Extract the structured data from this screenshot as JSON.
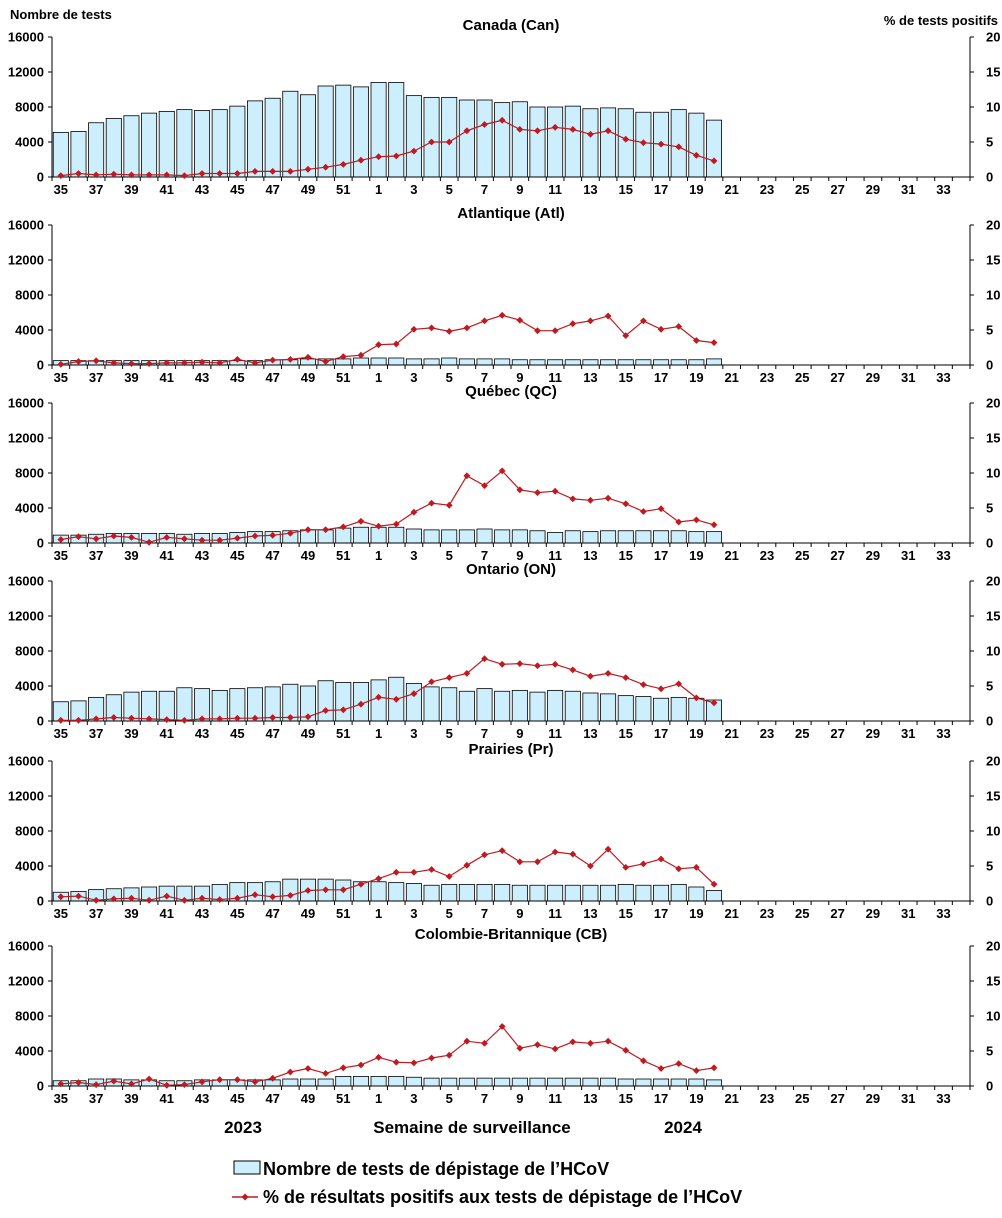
{
  "chart_data": {
    "type": "bar+line",
    "y_left_title": "Nombre de tests",
    "y_right_title": "% de tests positifs",
    "x_title": "Semaine de surveillance",
    "year_start_label": "2023",
    "year_end_label": "2024",
    "weeks": [
      35,
      36,
      37,
      38,
      39,
      40,
      41,
      42,
      43,
      44,
      45,
      46,
      47,
      48,
      49,
      50,
      51,
      52,
      1,
      2,
      3,
      4,
      5,
      6,
      7,
      8,
      9,
      10,
      11,
      12,
      13,
      14,
      15,
      16,
      17,
      18,
      19,
      20,
      21,
      22,
      23,
      24,
      25,
      26,
      27,
      28,
      29,
      30,
      31,
      32,
      33,
      34
    ],
    "tick_labels": [
      "35",
      "37",
      "39",
      "41",
      "43",
      "45",
      "47",
      "49",
      "51",
      "1",
      "3",
      "5",
      "7",
      "9",
      "11",
      "13",
      "15",
      "17",
      "19",
      "21",
      "23",
      "25",
      "27",
      "29",
      "31",
      "33"
    ],
    "y_left_ticks": [
      "0",
      "4000",
      "8000",
      "12000",
      "16000"
    ],
    "y_right_ticks": [
      "0",
      "5",
      "10",
      "15",
      "20"
    ],
    "ylim_left": [
      0,
      16000
    ],
    "ylim_right": [
      0,
      20
    ],
    "colors": {
      "bar_fill": "#cdeefc",
      "bar_stroke": "#000000",
      "line": "#c0191f"
    },
    "legend": {
      "bars": "Nombre de tests de dépistage de l’HCoV",
      "line": "% de résultats positifs aux tests de dépistage de l’HCoV"
    },
    "panels": [
      {
        "title": "Canada (Can)",
        "tests": [
          5100,
          5200,
          6200,
          6700,
          7000,
          7300,
          7500,
          7700,
          7600,
          7700,
          8100,
          8700,
          9000,
          9800,
          9400,
          10400,
          10500,
          10300,
          10800,
          10800,
          9300,
          9100,
          9100,
          8800,
          8800,
          8500,
          8600,
          8000,
          8000,
          8100,
          7800,
          7900,
          7800,
          7400,
          7400,
          7700,
          7300,
          6500
        ],
        "percent": [
          0.2,
          0.5,
          0.3,
          0.4,
          0.3,
          0.3,
          0.3,
          0.2,
          0.5,
          0.5,
          0.5,
          0.8,
          0.8,
          0.8,
          1.1,
          1.4,
          1.8,
          2.4,
          2.9,
          3.0,
          3.7,
          5.0,
          5.0,
          6.6,
          7.5,
          8.1,
          6.8,
          6.6,
          7.1,
          6.8,
          6.1,
          6.6,
          5.4,
          4.9,
          4.7,
          4.3,
          3.1,
          2.3
        ]
      },
      {
        "title": "Atlantique (Atl)",
        "tests": [
          500,
          500,
          500,
          500,
          500,
          500,
          500,
          500,
          500,
          500,
          500,
          500,
          600,
          600,
          700,
          700,
          700,
          800,
          800,
          800,
          700,
          700,
          800,
          700,
          700,
          700,
          600,
          600,
          600,
          600,
          600,
          600,
          600,
          600,
          600,
          600,
          600,
          700
        ],
        "percent": [
          0.1,
          0.5,
          0.6,
          0.3,
          0.2,
          0.2,
          0.3,
          0.3,
          0.4,
          0.3,
          0.8,
          0.3,
          0.7,
          0.8,
          1.1,
          0.5,
          1.2,
          1.4,
          2.9,
          3.0,
          5.1,
          5.3,
          4.8,
          5.3,
          6.3,
          7.1,
          6.4,
          4.9,
          4.9,
          5.9,
          6.3,
          7.0,
          4.2,
          6.3,
          5.1,
          5.5,
          3.5,
          3.2
        ]
      },
      {
        "title": "Québec (QC)",
        "tests": [
          900,
          900,
          1000,
          1100,
          1100,
          1100,
          1100,
          1000,
          1100,
          1100,
          1200,
          1300,
          1300,
          1400,
          1500,
          1500,
          1700,
          1800,
          1800,
          1800,
          1600,
          1500,
          1500,
          1500,
          1600,
          1500,
          1500,
          1400,
          1200,
          1400,
          1300,
          1400,
          1400,
          1400,
          1400,
          1400,
          1300,
          1300
        ],
        "percent": [
          0.5,
          0.9,
          0.6,
          1.0,
          0.8,
          0.1,
          0.8,
          0.6,
          0.4,
          0.4,
          0.7,
          1.0,
          1.1,
          1.4,
          1.9,
          1.9,
          2.3,
          3.1,
          2.4,
          2.7,
          4.4,
          5.7,
          5.4,
          9.6,
          8.2,
          10.3,
          7.6,
          7.2,
          7.4,
          6.3,
          6.1,
          6.4,
          5.6,
          4.5,
          4.9,
          3.0,
          3.3,
          2.6
        ]
      },
      {
        "title": "Ontario (ON)",
        "tests": [
          2200,
          2300,
          2700,
          3000,
          3300,
          3400,
          3400,
          3800,
          3700,
          3500,
          3700,
          3800,
          3900,
          4200,
          4000,
          4600,
          4400,
          4400,
          4700,
          5000,
          4300,
          3900,
          3800,
          3400,
          3700,
          3400,
          3500,
          3300,
          3500,
          3400,
          3200,
          3100,
          2900,
          2800,
          2600,
          2700,
          2600,
          2400
        ],
        "percent": [
          0.1,
          0.1,
          0.3,
          0.5,
          0.4,
          0.3,
          0.2,
          0.1,
          0.3,
          0.3,
          0.4,
          0.4,
          0.5,
          0.5,
          0.6,
          1.5,
          1.6,
          2.4,
          3.4,
          3.1,
          3.9,
          5.6,
          6.2,
          6.8,
          8.9,
          8.1,
          8.2,
          7.9,
          8.1,
          7.3,
          6.4,
          6.8,
          6.2,
          5.2,
          4.6,
          5.3,
          3.3,
          2.6
        ]
      },
      {
        "title": "Prairies (Pr)",
        "tests": [
          1000,
          1100,
          1300,
          1400,
          1500,
          1600,
          1700,
          1700,
          1700,
          1900,
          2100,
          2100,
          2200,
          2500,
          2500,
          2500,
          2400,
          2200,
          2200,
          2100,
          2000,
          1800,
          1900,
          1900,
          1900,
          1900,
          1800,
          1800,
          1800,
          1800,
          1800,
          1800,
          1900,
          1800,
          1800,
          1900,
          1600,
          1200
        ],
        "percent": [
          0.6,
          0.7,
          0.1,
          0.3,
          0.4,
          0.1,
          0.7,
          0.1,
          0.4,
          0.2,
          0.4,
          0.9,
          0.6,
          0.8,
          1.5,
          1.6,
          1.6,
          2.4,
          3.2,
          4.1,
          4.1,
          4.5,
          3.5,
          5.1,
          6.6,
          7.2,
          5.6,
          5.6,
          7.0,
          6.7,
          5.0,
          7.4,
          4.8,
          5.3,
          6.0,
          4.6,
          4.8,
          2.4
        ]
      },
      {
        "title": "Colombie-Britannique (CB)",
        "tests": [
          600,
          600,
          800,
          800,
          700,
          700,
          600,
          600,
          700,
          700,
          700,
          700,
          700,
          800,
          800,
          800,
          1100,
          1100,
          1100,
          1100,
          1000,
          900,
          900,
          900,
          900,
          900,
          900,
          900,
          900,
          900,
          900,
          900,
          800,
          800,
          800,
          800,
          800,
          700
        ],
        "percent": [
          0.3,
          0.5,
          0.2,
          0.7,
          0.3,
          1.0,
          0.1,
          0.2,
          0.6,
          0.9,
          0.9,
          0.6,
          1.1,
          2.0,
          2.5,
          1.8,
          2.6,
          3.0,
          4.1,
          3.4,
          3.3,
          4.0,
          4.4,
          6.4,
          6.1,
          8.5,
          5.4,
          5.9,
          5.3,
          6.3,
          6.1,
          6.4,
          5.1,
          3.6,
          2.5,
          3.2,
          2.2,
          2.6
        ]
      }
    ]
  }
}
